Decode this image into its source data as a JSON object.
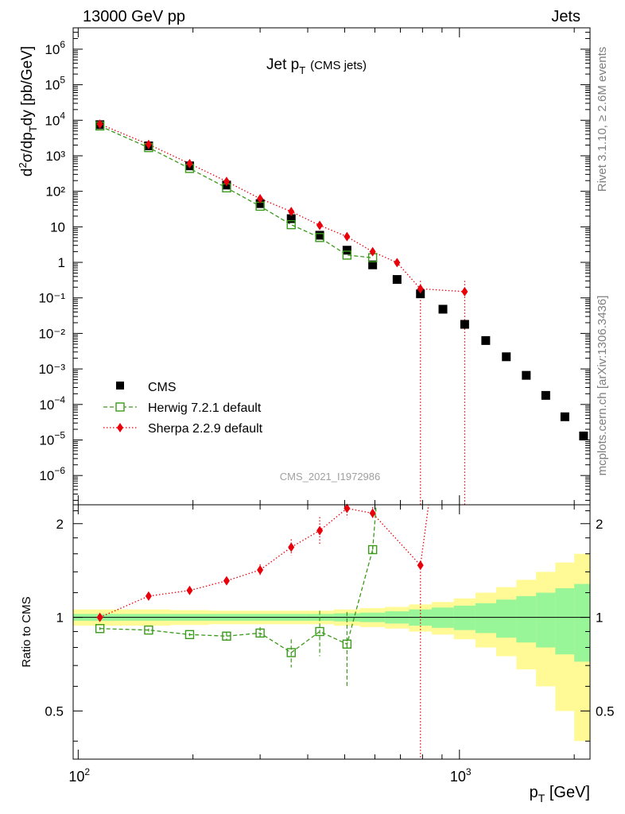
{
  "header": {
    "left": "13000 GeV pp",
    "right": "Jets"
  },
  "plot_title": {
    "main": "Jet p",
    "main_sub": "T",
    "extra": "(CMS jets)"
  },
  "side_labels": {
    "rivet": "Rivet 3.1.10, ≥ 2.6M events",
    "mcplots": "mcplots.cern.ch [arXiv:1306.3436]"
  },
  "watermark": "CMS_2021_I1972986",
  "chart_data": [
    {
      "type": "scatter",
      "title": "Jet pT (CMS jets)",
      "ylabel": "d²σ/dp_T dy [pb/GeV]",
      "xscale": "log",
      "yscale": "log",
      "xlim": [
        97,
        2200
      ],
      "ylim": [
        1.5e-07,
        4000000.0
      ],
      "legend_position": "bottom-left",
      "x_ticks": [
        "10²",
        "10³"
      ],
      "y_ticks": [
        "10⁶",
        "10⁵",
        "10⁴",
        "10³",
        "10²",
        "10",
        "1",
        "10⁻¹",
        "10⁻²",
        "10⁻³",
        "10⁻⁴",
        "10⁻⁵",
        "10⁻⁶"
      ],
      "series": [
        {
          "name": "CMS",
          "color": "#000000",
          "marker": "square-filled",
          "x": [
            114,
            153,
            196,
            245,
            300,
            362,
            430,
            507,
            592,
            686,
            790,
            905,
            1032,
            1172,
            1327,
            1497,
            1684,
            1890,
            2116
          ],
          "y": [
            7500,
            1900,
            520,
            150,
            45,
            17,
            5.8,
            2.2,
            0.85,
            0.33,
            0.13,
            0.048,
            0.018,
            0.0063,
            0.0022,
            0.00066,
            0.00018,
            4.5e-05,
            1.3e-05
          ]
        },
        {
          "name": "Herwig 7.2.1 default",
          "color": "#3a9a1a",
          "marker": "square-open",
          "line": "dashed",
          "x": [
            114,
            153,
            196,
            245,
            300,
            362,
            430,
            507,
            592
          ],
          "y": [
            6900,
            1700,
            440,
            125,
            38,
            11.5,
            5,
            1.6,
            1.35
          ]
        },
        {
          "name": "Sherpa 2.2.9 default",
          "color": "#e8000b",
          "marker": "diamond",
          "line": "dotted",
          "x": [
            114,
            153,
            196,
            245,
            300,
            362,
            430,
            507,
            592,
            686,
            790,
            1032
          ],
          "y": [
            7800,
            2100,
            600,
            190,
            62,
            27,
            11,
            5.3,
            2,
            0.98,
            0.18,
            0.15
          ]
        }
      ]
    },
    {
      "type": "scatter",
      "ylabel": "Ratio to CMS",
      "xlabel": "p_T [GeV]",
      "xscale": "log",
      "xlim": [
        97,
        2200
      ],
      "ylim": [
        0.35,
        2.3
      ],
      "y_ticks": [
        "2",
        "1",
        "0.5"
      ],
      "series": [
        {
          "name": "Herwig 7.2.1 default",
          "color": "#3a9a1a",
          "x": [
            114,
            153,
            196,
            245,
            300,
            362,
            430,
            507,
            592
          ],
          "y": [
            0.92,
            0.91,
            0.88,
            0.87,
            0.89,
            0.77,
            0.9,
            0.82,
            1.65
          ],
          "yerr": [
            0.01,
            0.01,
            0.01,
            0.025,
            0.04,
            0.08,
            0.15,
            0.22,
            0.05
          ]
        },
        {
          "name": "Sherpa 2.2.9 default",
          "color": "#e8000b",
          "x": [
            114,
            153,
            196,
            245,
            300,
            362,
            430,
            507,
            592,
            790
          ],
          "y": [
            1.0,
            1.17,
            1.22,
            1.31,
            1.42,
            1.68,
            1.9,
            2.24,
            2.16,
            1.47
          ],
          "yerr": [
            0.01,
            0.02,
            0.02,
            0.04,
            0.06,
            0.1,
            0.2,
            0.15,
            0.1,
            0.05
          ]
        }
      ],
      "bands": {
        "green_color": "#98f598",
        "yellow_color": "#fffa96",
        "edges": [
          97,
          133,
          174,
          220,
          272,
          330,
          395,
          468,
          548,
          638,
          737,
          846,
          967,
          1101,
          1248,
          1410,
          1588,
          1784,
          2000,
          2200
        ],
        "green_half_width": [
          0.025,
          0.025,
          0.025,
          0.025,
          0.025,
          0.025,
          0.025,
          0.03,
          0.035,
          0.045,
          0.06,
          0.075,
          0.09,
          0.11,
          0.14,
          0.17,
          0.2,
          0.24,
          0.28
        ],
        "yellow_half_width": [
          0.06,
          0.06,
          0.055,
          0.05,
          0.05,
          0.05,
          0.05,
          0.06,
          0.07,
          0.08,
          0.1,
          0.12,
          0.15,
          0.2,
          0.25,
          0.32,
          0.4,
          0.5,
          0.6
        ]
      }
    }
  ],
  "legend": [
    {
      "label": "CMS"
    },
    {
      "label": "Herwig 7.2.1 default"
    },
    {
      "label": "Sherpa 2.2.9 default"
    }
  ]
}
